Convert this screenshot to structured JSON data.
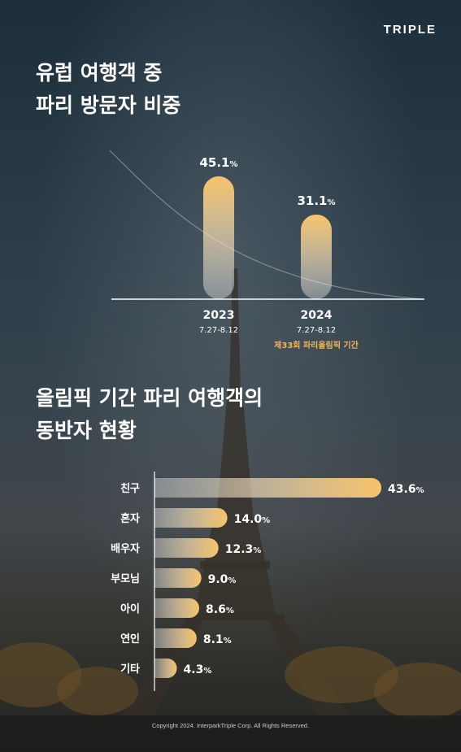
{
  "brand": "TRIPLE",
  "section1": {
    "title_line1": "유럽 여행객 중",
    "title_line2": "파리 방문자 비중"
  },
  "section2": {
    "title_line1": "올림픽 기간 파리 여행객의",
    "title_line2": "동반자 현황"
  },
  "footer": "Copyright 2024. InterparkTriple Corp. All Rights Reserved.",
  "colors": {
    "bar_top": "#f7c36a",
    "bar_bottom": "#ffffff",
    "highlight": "#f2b45a",
    "text": "#ffffff"
  },
  "chart_data": [
    {
      "type": "bar",
      "categories": [
        "2023",
        "2024"
      ],
      "category_sublabels": [
        "7.27-8.12",
        "7.27-8.12"
      ],
      "values": [
        45.1,
        31.1
      ],
      "value_labels": [
        "45.1",
        "31.1"
      ],
      "unit": "%",
      "annotation": "제33회 파리올림픽 기간"
    },
    {
      "type": "bar",
      "orientation": "horizontal",
      "categories": [
        "친구",
        "혼자",
        "배우자",
        "부모님",
        "아이",
        "연인",
        "기타"
      ],
      "values": [
        43.6,
        14.0,
        12.3,
        9.0,
        8.6,
        8.1,
        4.3
      ],
      "value_labels": [
        "43.6",
        "14.0",
        "12.3",
        "9.0",
        "8.6",
        "8.1",
        "4.3"
      ],
      "unit": "%"
    }
  ]
}
